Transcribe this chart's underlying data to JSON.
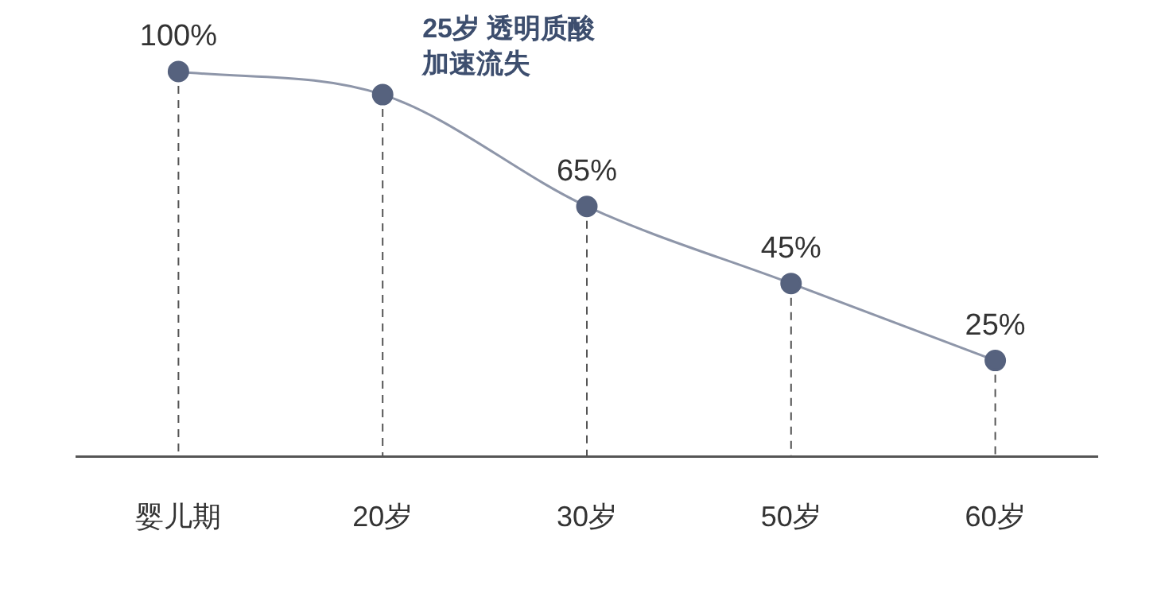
{
  "chart_data": {
    "type": "line",
    "categories": [
      "婴儿期",
      "20岁",
      "30岁",
      "50岁",
      "60岁"
    ],
    "values": [
      100,
      94,
      65,
      45,
      25
    ],
    "value_labels": [
      "100%",
      null,
      "65%",
      "45%",
      "25%"
    ],
    "color": "#56627e",
    "marker": "circle",
    "grid": "x",
    "legend": false,
    "tick_labels": "x",
    "annotations": [
      {
        "text": "25岁 透明质酸加速流失",
        "x": "20岁",
        "y": 94
      }
    ]
  }
}
